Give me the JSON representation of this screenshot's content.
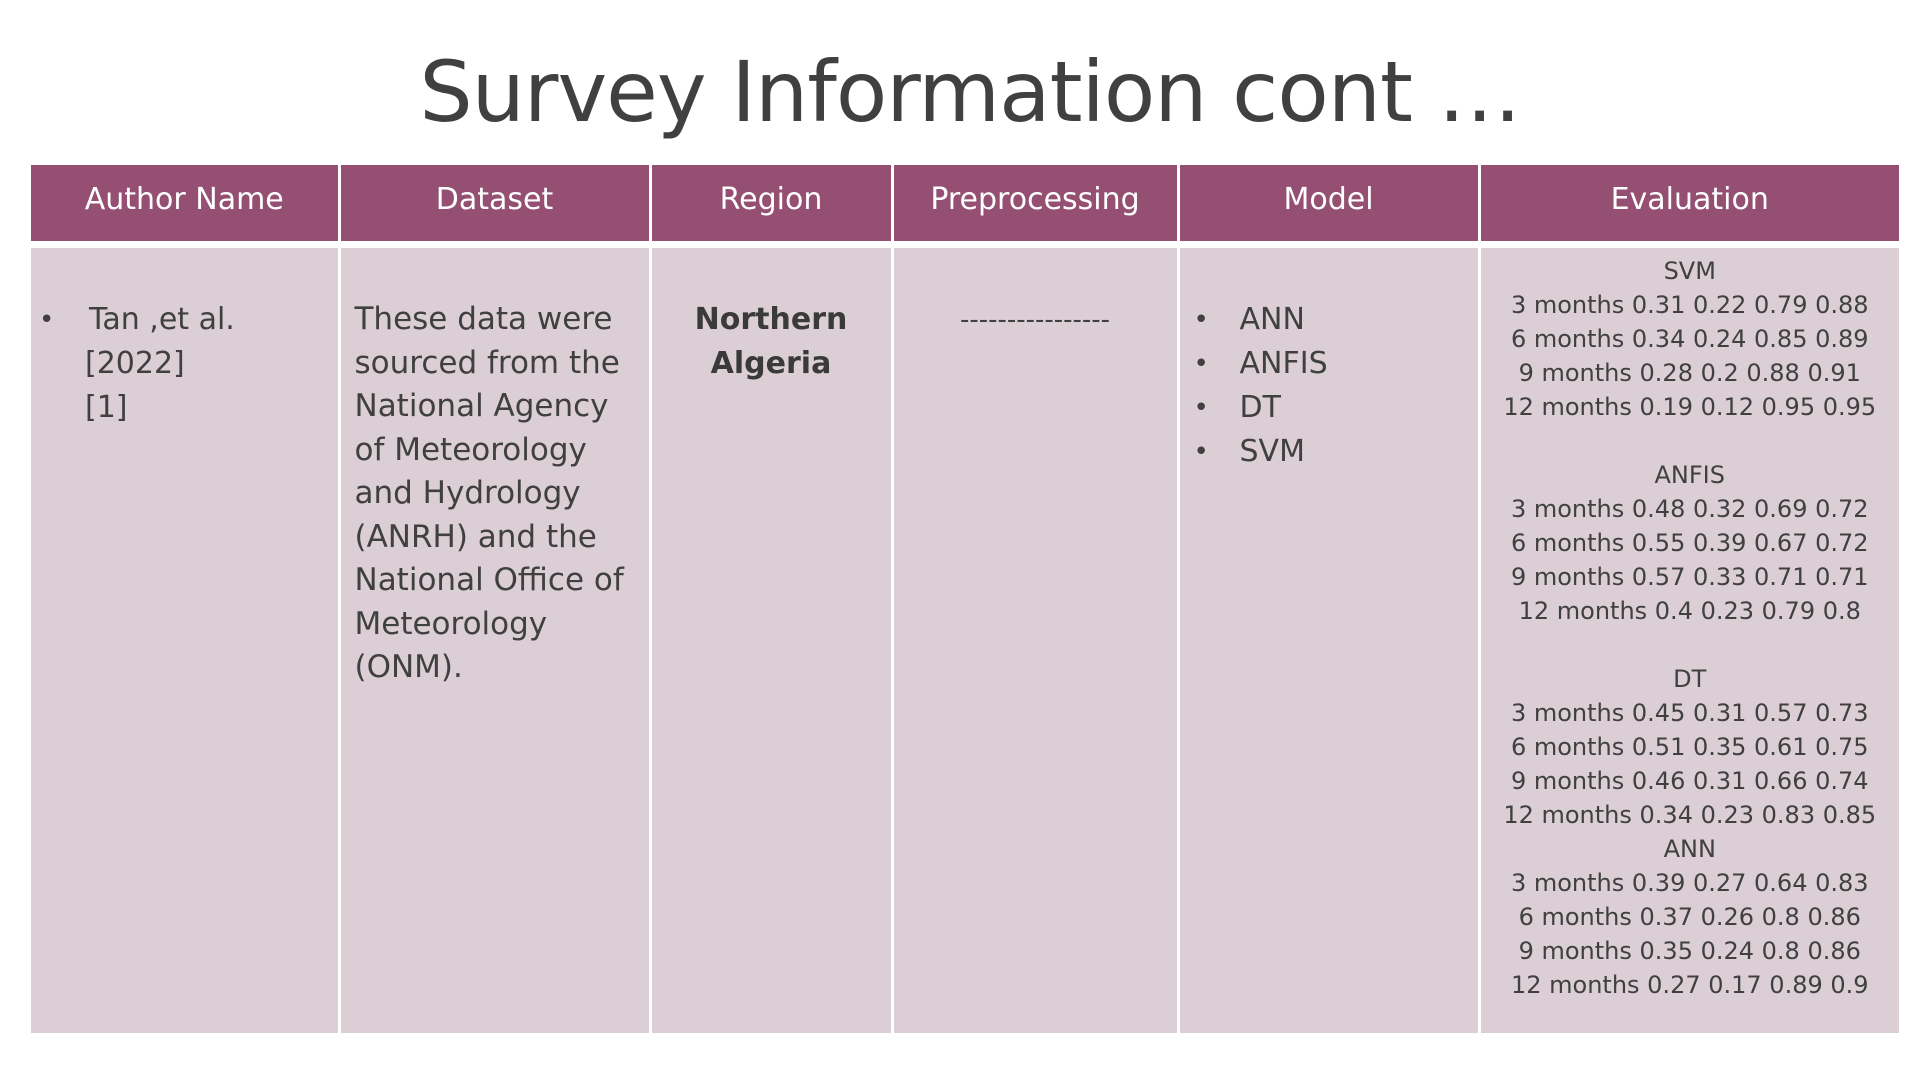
{
  "slide": {
    "title": "Survey Information cont …"
  },
  "table": {
    "headers": [
      "Author Name",
      "Dataset",
      "Region",
      "Preprocessing",
      "Model",
      "Evaluation"
    ],
    "row": {
      "author": {
        "bullet": "•",
        "lines": [
          "Tan ,et al.",
          "[2022]",
          "[1]"
        ]
      },
      "dataset": "These data were sourced from the National Agency of Meteorology and Hydrology (ANRH) and the National Office of Meteorology (ONM).",
      "region": {
        "lines": [
          "Northern",
          "Algeria"
        ]
      },
      "preprocessing": "----------------",
      "models": [
        "ANN",
        "ANFIS",
        "DT",
        "SVM"
      ],
      "evaluation": [
        {
          "model": "SVM",
          "rows": [
            "3 months 0.31 0.22 0.79 0.88",
            "6 months 0.34 0.24 0.85 0.89",
            "9 months 0.28 0.2 0.88 0.91",
            "12 months 0.19 0.12 0.95 0.95"
          ]
        },
        {
          "model": "ANFIS",
          "rows": [
            "3 months 0.48 0.32 0.69 0.72",
            "6 months 0.55 0.39 0.67 0.72",
            "9 months 0.57 0.33 0.71 0.71",
            "12 months 0.4 0.23 0.79 0.8"
          ]
        },
        {
          "model": "DT",
          "rows": [
            "3 months 0.45 0.31 0.57 0.73",
            "6 months 0.51 0.35 0.61 0.75",
            "9 months 0.46 0.31 0.66 0.74",
            "12 months 0.34 0.23 0.83 0.85"
          ]
        },
        {
          "model": "ANN",
          "rows": [
            "3 months 0.39 0.27 0.64 0.83",
            "6 months 0.37 0.26 0.8 0.86",
            "9 months 0.35 0.24 0.8 0.86",
            "12 months 0.27 0.17 0.89 0.9"
          ]
        }
      ]
    }
  },
  "colors": {
    "header_bg": "#954f72",
    "header_text": "#ffffff",
    "cell_bg": "#dbcfd5",
    "text": "#404040"
  }
}
